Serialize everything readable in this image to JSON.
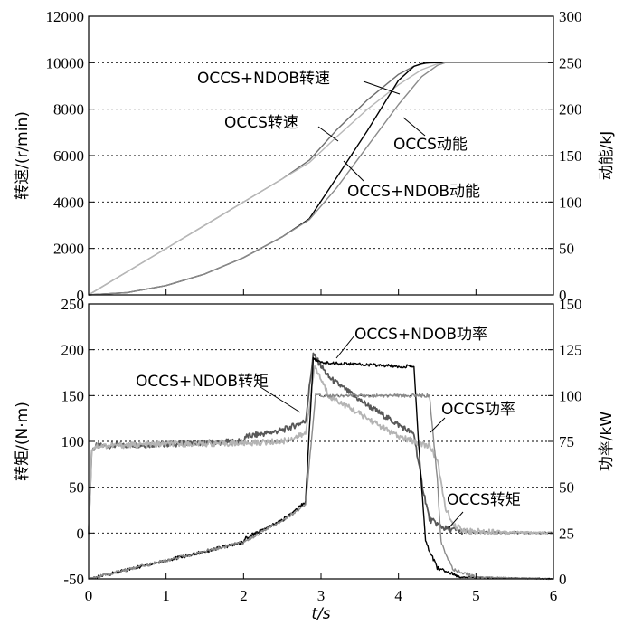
{
  "chart_data": [
    {
      "type": "line",
      "ylabel_left": "转速/(r/min)",
      "ylabel_right": "动能/kJ",
      "xlim": [
        0,
        6
      ],
      "ylim_left": [
        0,
        12000
      ],
      "ylim_right": [
        0,
        300
      ],
      "yticks_left": [
        "0",
        "2000",
        "4000",
        "6000",
        "8000",
        "10000",
        "12000"
      ],
      "yticks_right": [
        "0",
        "50",
        "100",
        "150",
        "200",
        "250",
        "300"
      ],
      "grid": true,
      "series": [
        {
          "name": "OCCS+NDOB转速",
          "axis": "left",
          "color": "#6e6e6e",
          "x": [
            0,
            0.5,
            1,
            1.5,
            2,
            2.5,
            2.85,
            3.2,
            3.6,
            4.0,
            4.2,
            4.35,
            4.5,
            6
          ],
          "y": [
            0,
            1000,
            2000,
            3000,
            4000,
            5000,
            5800,
            7100,
            8400,
            9500,
            9850,
            9980,
            10000,
            10000
          ]
        },
        {
          "name": "OCCS转速",
          "axis": "left",
          "color": "#b8b8b8",
          "x": [
            0,
            0.5,
            1,
            1.5,
            2,
            2.5,
            2.85,
            3.2,
            3.6,
            4.0,
            4.3,
            4.5,
            4.6,
            6
          ],
          "y": [
            0,
            1000,
            2000,
            3000,
            4000,
            5000,
            5700,
            6800,
            8000,
            9050,
            9700,
            9950,
            10000,
            10000
          ]
        },
        {
          "name": "OCCS+NDOB动能",
          "axis": "right",
          "color": "#000000",
          "x": [
            0,
            0.5,
            1,
            1.5,
            2,
            2.5,
            2.85,
            3.2,
            3.6,
            4.0,
            4.2,
            4.3,
            4.4,
            6
          ],
          "y": [
            0,
            2.5,
            10,
            22.5,
            40,
            62.5,
            82,
            126,
            177,
            231,
            246,
            249,
            250,
            250
          ]
        },
        {
          "name": "OCCS动能",
          "axis": "right",
          "color": "#8a8a8a",
          "x": [
            0,
            0.5,
            1,
            1.5,
            2,
            2.5,
            2.85,
            3.2,
            3.6,
            4.0,
            4.3,
            4.5,
            4.6,
            6
          ],
          "y": [
            0,
            2.5,
            10,
            22.5,
            40,
            62.5,
            81,
            115,
            160,
            205,
            235,
            247,
            250,
            250
          ]
        }
      ],
      "annotations": [
        "OCCS+NDOB转速",
        "OCCS转速",
        "OCCS动能",
        "OCCS+NDOB动能"
      ]
    },
    {
      "type": "line",
      "xlabel": "t/s",
      "ylabel_left": "转矩/(N·m)",
      "ylabel_right": "功率/kW",
      "xlim": [
        0,
        6
      ],
      "ylim_left": [
        -50,
        250
      ],
      "ylim_right": [
        0,
        150
      ],
      "xticks": [
        "0",
        "1",
        "2",
        "3",
        "4",
        "5",
        "6"
      ],
      "yticks_left": [
        "-50",
        "0",
        "50",
        "100",
        "150",
        "200",
        "250"
      ],
      "yticks_right": [
        "0",
        "25",
        "50",
        "75",
        "100",
        "125",
        "150"
      ],
      "grid": true,
      "series": [
        {
          "name": "OCCS+NDOB转矩",
          "axis": "left",
          "color": "#585858",
          "x": [
            0,
            0.04,
            0.1,
            1,
            2,
            2.02,
            2.5,
            2.8,
            2.9,
            3.1,
            3.5,
            4.0,
            4.2,
            4.3,
            4.4,
            4.6,
            4.9,
            6
          ],
          "y": [
            0,
            90,
            95,
            97,
            100,
            105,
            112,
            122,
            195,
            170,
            145,
            118,
            108,
            55,
            15,
            5,
            1,
            0
          ]
        },
        {
          "name": "OCCS转矩",
          "axis": "left",
          "color": "#b4b4b4",
          "x": [
            0,
            0.04,
            0.1,
            1,
            2,
            2.5,
            2.8,
            2.92,
            3.1,
            3.5,
            4.0,
            4.4,
            4.5,
            4.6,
            4.7,
            4.9,
            6
          ],
          "y": [
            0,
            92,
            95,
            97,
            98,
            100,
            108,
            182,
            150,
            130,
            105,
            95,
            80,
            30,
            8,
            2,
            0
          ]
        },
        {
          "name": "OCCS+NDOB功率",
          "axis": "right",
          "color": "#000000",
          "x": [
            0,
            1,
            2,
            2.02,
            2.5,
            2.8,
            2.9,
            3.0,
            3.5,
            4.0,
            4.2,
            4.25,
            4.35,
            4.5,
            4.8,
            6
          ],
          "y": [
            0,
            10,
            20,
            22,
            32,
            42,
            120,
            118,
            117,
            116,
            116,
            80,
            20,
            6,
            1,
            0
          ]
        },
        {
          "name": "OCCS功率",
          "axis": "right",
          "color": "#8a8a8a",
          "x": [
            0,
            1,
            2,
            2.5,
            2.8,
            2.93,
            3.0,
            3.5,
            4.0,
            4.4,
            4.5,
            4.55,
            4.7,
            5.0,
            6
          ],
          "y": [
            0,
            10,
            20,
            32,
            40,
            100,
            100,
            100,
            100,
            100,
            55,
            20,
            5,
            1,
            0
          ]
        }
      ],
      "annotations": [
        "OCCS+NDOB功率",
        "OCCS+NDOB转矩",
        "OCCS功率",
        "OCCS转矩"
      ]
    }
  ]
}
